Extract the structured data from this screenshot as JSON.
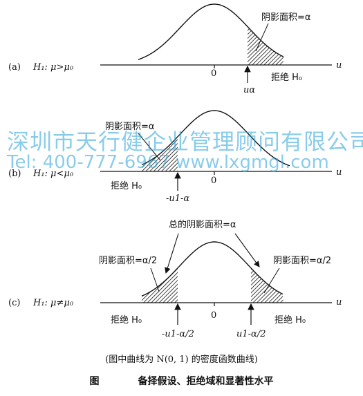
{
  "panels": [
    {
      "tag": "(a)",
      "hypothesis": "H₁: μ>μ₀",
      "zero": "0",
      "axis_var": "u",
      "region_labels": [
        {
          "text": "阴影面积=α"
        }
      ],
      "reject_labels": [
        {
          "text": "拒绝 H₀"
        }
      ],
      "critical_labels": [
        {
          "text": "uα"
        }
      ]
    },
    {
      "tag": "(b)",
      "hypothesis": "H₁: μ<μ₀",
      "zero": "0",
      "axis_var": "u",
      "region_labels": [
        {
          "text": "阴影面积=α"
        }
      ],
      "reject_labels": [
        {
          "text": "拒绝 H₀"
        }
      ],
      "critical_labels": [
        {
          "text": "-u1-α"
        }
      ]
    },
    {
      "tag": "(c)",
      "hypothesis": "H₁: μ≠μ₀",
      "zero": "0",
      "axis_var": "u",
      "total_label": "总的阴影面积=α",
      "region_labels": [
        {
          "text": "阴影面积=α/2"
        },
        {
          "text": "阴影面积=α/2"
        }
      ],
      "reject_labels": [
        {
          "text": "拒绝 H₀"
        },
        {
          "text": "拒绝 H₀"
        }
      ],
      "critical_labels": [
        {
          "text": "-u1-α/2"
        },
        {
          "text": "u1-α/2"
        }
      ]
    }
  ],
  "note": "(图中曲线为 N(0, 1) 的密度函数曲线)",
  "figure_title_prefix": "图",
  "figure_title": "备择假设、拒绝域和显著性水平",
  "watermark": {
    "line1": "深圳市天行健企业管理顾问有限公司",
    "line2": "Tel: 400-777-6967 www.lxgmgl.com"
  }
}
